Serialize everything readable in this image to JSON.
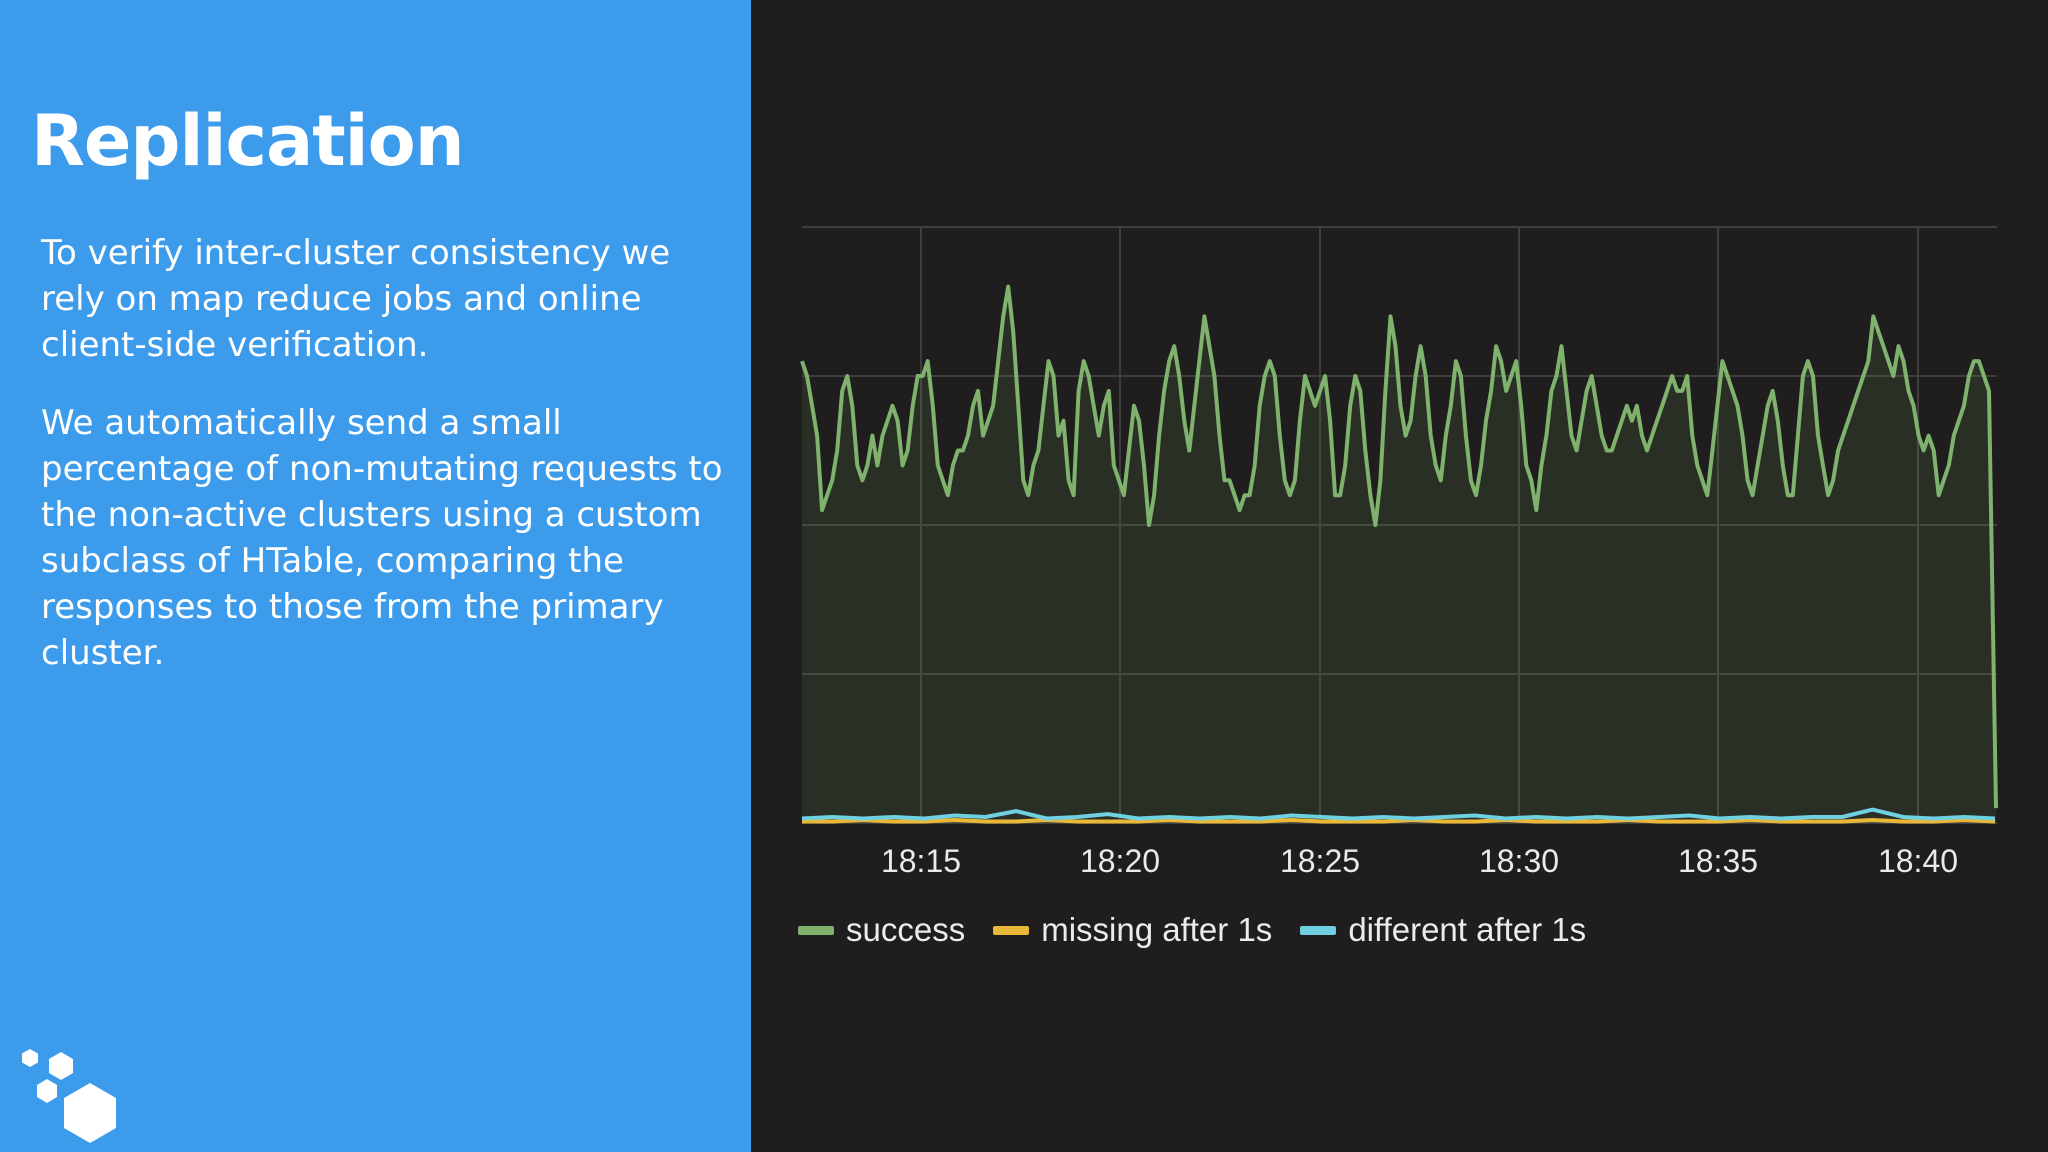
{
  "slide": {
    "title": "Replication",
    "paragraphs": [
      "To verify inter-cluster consistency we rely on map reduce jobs and online client-side verification.",
      "We automatically send a small percentage of non-mutating requests to the non-active clusters using a custom subclass of HTable, comparing the responses to those from the primary cluster."
    ],
    "logo_icon": "hexagon-cluster-logo-icon"
  },
  "colors": {
    "panel": "#3d9beb",
    "background": "#1f1d1d",
    "success": "#7eb26d",
    "missing": "#eab839",
    "different": "#6ed0e0"
  },
  "chart_data": {
    "type": "line",
    "x_ticks": [
      "18:15",
      "18:20",
      "18:25",
      "18:30",
      "18:35",
      "18:40"
    ],
    "grid": true,
    "legend_position": "bottom-left",
    "series": [
      {
        "name": "success",
        "color": "#7eb26d",
        "fill": true,
        "values": [
          3.1,
          3.0,
          2.8,
          2.6,
          2.1,
          2.2,
          2.3,
          2.5,
          2.9,
          3.0,
          2.8,
          2.4,
          2.3,
          2.4,
          2.6,
          2.4,
          2.6,
          2.7,
          2.8,
          2.7,
          2.4,
          2.5,
          2.8,
          3.0,
          3.0,
          3.1,
          2.8,
          2.4,
          2.3,
          2.2,
          2.4,
          2.5,
          2.5,
          2.6,
          2.8,
          2.9,
          2.6,
          2.7,
          2.8,
          3.1,
          3.4,
          3.6,
          3.3,
          2.8,
          2.3,
          2.2,
          2.4,
          2.5,
          2.8,
          3.1,
          3.0,
          2.6,
          2.7,
          2.3,
          2.2,
          2.9,
          3.1,
          3.0,
          2.8,
          2.6,
          2.8,
          2.9,
          2.4,
          2.3,
          2.2,
          2.5,
          2.8,
          2.7,
          2.4,
          2.0,
          2.2,
          2.6,
          2.9,
          3.1,
          3.2,
          3.0,
          2.7,
          2.5,
          2.8,
          3.1,
          3.4,
          3.2,
          3.0,
          2.6,
          2.3,
          2.3,
          2.2,
          2.1,
          2.2,
          2.2,
          2.4,
          2.8,
          3.0,
          3.1,
          3.0,
          2.6,
          2.3,
          2.2,
          2.3,
          2.7,
          3.0,
          2.9,
          2.8,
          2.9,
          3.0,
          2.7,
          2.2,
          2.2,
          2.4,
          2.8,
          3.0,
          2.9,
          2.5,
          2.2,
          2.0,
          2.3,
          2.9,
          3.4,
          3.2,
          2.8,
          2.6,
          2.7,
          3.0,
          3.2,
          3.0,
          2.6,
          2.4,
          2.3,
          2.6,
          2.8,
          3.1,
          3.0,
          2.6,
          2.3,
          2.2,
          2.4,
          2.7,
          2.9,
          3.2,
          3.1,
          2.9,
          3.0,
          3.1,
          2.8,
          2.4,
          2.3,
          2.1,
          2.4,
          2.6,
          2.9,
          3.0,
          3.2,
          2.9,
          2.6,
          2.5,
          2.7,
          2.9,
          3.0,
          2.8,
          2.6,
          2.5,
          2.5,
          2.6,
          2.7,
          2.8,
          2.7,
          2.8,
          2.6,
          2.5,
          2.6,
          2.7,
          2.8,
          2.9,
          3.0,
          2.9,
          2.9,
          3.0,
          2.6,
          2.4,
          2.3,
          2.2,
          2.5,
          2.8,
          3.1,
          3.0,
          2.9,
          2.8,
          2.6,
          2.3,
          2.2,
          2.4,
          2.6,
          2.8,
          2.9,
          2.7,
          2.4,
          2.2,
          2.2,
          2.6,
          3.0,
          3.1,
          3.0,
          2.6,
          2.4,
          2.2,
          2.3,
          2.5,
          2.6,
          2.7,
          2.8,
          2.9,
          3.0,
          3.1,
          3.4,
          3.3,
          3.2,
          3.1,
          3.0,
          3.2,
          3.1,
          2.9,
          2.8,
          2.6,
          2.5,
          2.6,
          2.5,
          2.2,
          2.3,
          2.4,
          2.6,
          2.7,
          2.8,
          3.0,
          3.1,
          3.1,
          3.0,
          2.9
        ],
        "end_value": 0.1
      },
      {
        "name": "missing after 1s",
        "color": "#eab839",
        "values": [
          0.01,
          0.01,
          0.02,
          0.01,
          0.01,
          0.02,
          0.01,
          0.01,
          0.02,
          0.01,
          0.01,
          0.01,
          0.02,
          0.01,
          0.01,
          0.01,
          0.02,
          0.01,
          0.01,
          0.01,
          0.02,
          0.01,
          0.01,
          0.02,
          0.01,
          0.01,
          0.01,
          0.02,
          0.01,
          0.01,
          0.01,
          0.02,
          0.01,
          0.01,
          0.01,
          0.02,
          0.01,
          0.01,
          0.02,
          0.01
        ]
      },
      {
        "name": "different after 1s",
        "color": "#6ed0e0",
        "values": [
          0.03,
          0.04,
          0.03,
          0.04,
          0.03,
          0.05,
          0.04,
          0.08,
          0.03,
          0.04,
          0.06,
          0.03,
          0.04,
          0.03,
          0.04,
          0.03,
          0.05,
          0.04,
          0.03,
          0.04,
          0.03,
          0.04,
          0.05,
          0.03,
          0.04,
          0.03,
          0.04,
          0.03,
          0.04,
          0.05,
          0.03,
          0.04,
          0.03,
          0.04,
          0.04,
          0.09,
          0.04,
          0.03,
          0.04,
          0.03
        ]
      }
    ]
  }
}
